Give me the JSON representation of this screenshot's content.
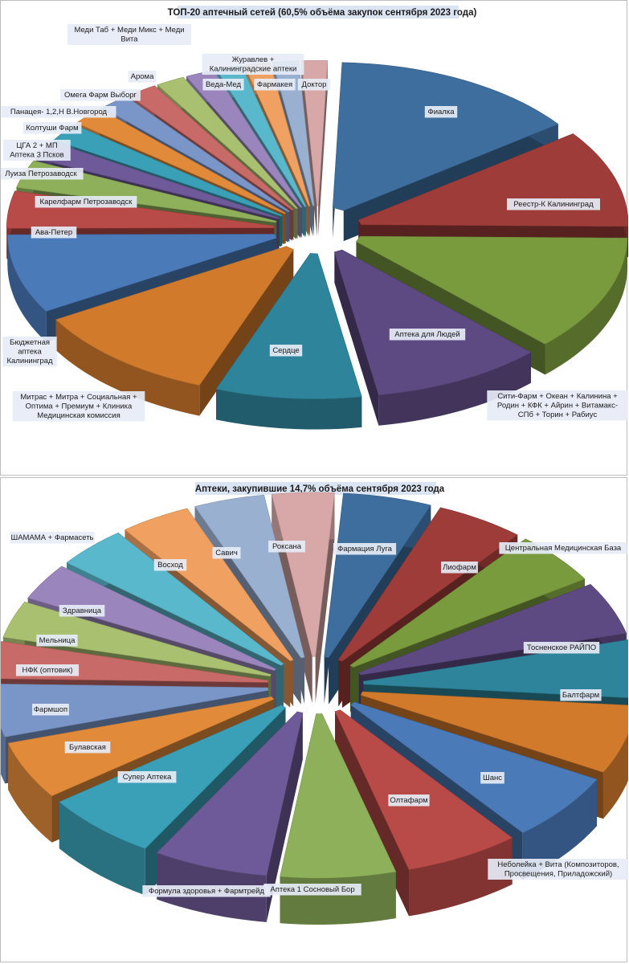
{
  "chart_data": [
    {
      "type": "pie",
      "title": "ТОП-20 аптечный сетей (60,5% объёма закупок сентября 2023 года)",
      "labels": [
        "Фиалка",
        "Реестр-К Калининград",
        "Сити-Фарм + Океан + Калинина + Родин + КФК + Айрин + Витамакс-СПб + Торин + Рабиус",
        "Аптека для Людей",
        "Сердце",
        "Митрас + Митра + Социальная + Оптима + Премиум + Клиника Медицинская комиссия",
        "Бюджетная аптека Калининград",
        "Ава-Петер",
        "Карелфарм Петрозаводск",
        "Луиза Петрозаводск",
        "ЦГА 2 + МП Аптека 3 Псков",
        "Колтуши Фарм",
        "Панацея- 1,2,Н В.Новгород",
        "Омега Фарм Выборг",
        "Арома",
        "Меди Таб + Меди Микс + Меди Вита",
        "Веда-Мед",
        "Журавлев + Калининградские аптеки",
        "Фармакея",
        "Доктор"
      ],
      "values": [
        14.5,
        10.5,
        12.5,
        10.0,
        8.5,
        11.0,
        8.5,
        4.0,
        3.0,
        2.0,
        2.0,
        2.0,
        1.8,
        1.8,
        1.7,
        1.7,
        1.5,
        1.5,
        1.5,
        1.5
      ],
      "colors": [
        "#3e6e9e",
        "#9e3c39",
        "#7a9a3e",
        "#5e4a82",
        "#2e849a",
        "#d27a2c",
        "#4a7ab8",
        "#b84a47",
        "#8fb05a",
        "#6e5a98",
        "#3aa0b8",
        "#e08a3a",
        "#7a96c8",
        "#c86a67",
        "#a8c070",
        "#9a86bc",
        "#5ab8cc",
        "#f0a060",
        "#9ab0d0",
        "#d8a8a8"
      ]
    },
    {
      "type": "pie",
      "title": "Аптеки, закупившие 14,7% объёма сентября 2023 года",
      "labels": [
        "Фармация Луга",
        "Лиофарм",
        "Центральная Медицинская База",
        "Тосненское РАЙПО",
        "Балтфарм",
        "Неболейка + Вита (Композиторов, Просвещения, Приладожский)",
        "Шанс",
        "Олтафарм",
        "Аптека 1 Сосновый Бор",
        "Формула здоровья + Фармтрейд",
        "Супер Аптека",
        "Булавская",
        "Фармшоп",
        "НФК (оптовик)",
        "Мельница",
        "Здравница",
        "ШАМАМА + Фармасеть",
        "Восход",
        "Савич",
        "Роксана"
      ],
      "values": [
        5.0,
        5.0,
        5.0,
        5.0,
        5.5,
        6.5,
        6.5,
        6.5,
        6.5,
        6.5,
        6.5,
        5.5,
        5.0,
        3.5,
        3.5,
        3.5,
        4.0,
        4.0,
        4.0,
        3.5
      ],
      "colors": [
        "#3e6e9e",
        "#9e3c39",
        "#7a9a3e",
        "#5e4a82",
        "#2e849a",
        "#d27a2c",
        "#4a7ab8",
        "#b84a47",
        "#8fb05a",
        "#6e5a98",
        "#3aa0b8",
        "#e08a3a",
        "#7a96c8",
        "#c86a67",
        "#a8c070",
        "#9a86bc",
        "#5ab8cc",
        "#f0a060",
        "#9ab0d0",
        "#d8a8a8"
      ]
    }
  ]
}
